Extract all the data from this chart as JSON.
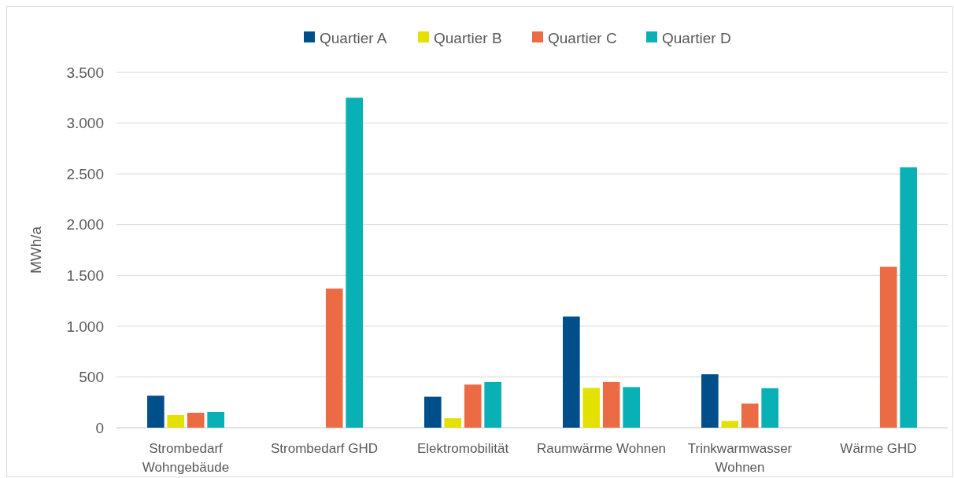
{
  "chart_data": {
    "type": "bar",
    "ylabel": "MWh/a",
    "categories": [
      "Strombedarf Wohngebäude",
      "Strombedarf GHD",
      "Elektromobilität",
      "Raumwärme Wohnen",
      "Trinkwarmwasser Wohnen",
      "Wärme GHD"
    ],
    "series": [
      {
        "name": "Quartier A",
        "color": "#004f8a",
        "values": [
          315,
          0,
          305,
          1095,
          526,
          0
        ]
      },
      {
        "name": "Quartier B",
        "color": "#e4e000",
        "values": [
          124,
          0,
          93,
          392,
          66,
          0
        ]
      },
      {
        "name": "Quartier C",
        "color": "#ea6b44",
        "values": [
          147,
          1370,
          425,
          450,
          237,
          1585
        ]
      },
      {
        "name": "Quartier D",
        "color": "#09b0b6",
        "values": [
          155,
          3250,
          450,
          400,
          389,
          2565
        ]
      }
    ],
    "ylim": [
      0,
      3500
    ],
    "yticks": [
      {
        "value": 0,
        "label": "0"
      },
      {
        "value": 500,
        "label": "500"
      },
      {
        "value": 1000,
        "label": "1.000"
      },
      {
        "value": 1500,
        "label": "1.500"
      },
      {
        "value": 2000,
        "label": "2.000"
      },
      {
        "value": 2500,
        "label": "2.500"
      },
      {
        "value": 3000,
        "label": "3.000"
      },
      {
        "value": 3500,
        "label": "3.500"
      }
    ],
    "grid": "y",
    "legend": "top"
  }
}
